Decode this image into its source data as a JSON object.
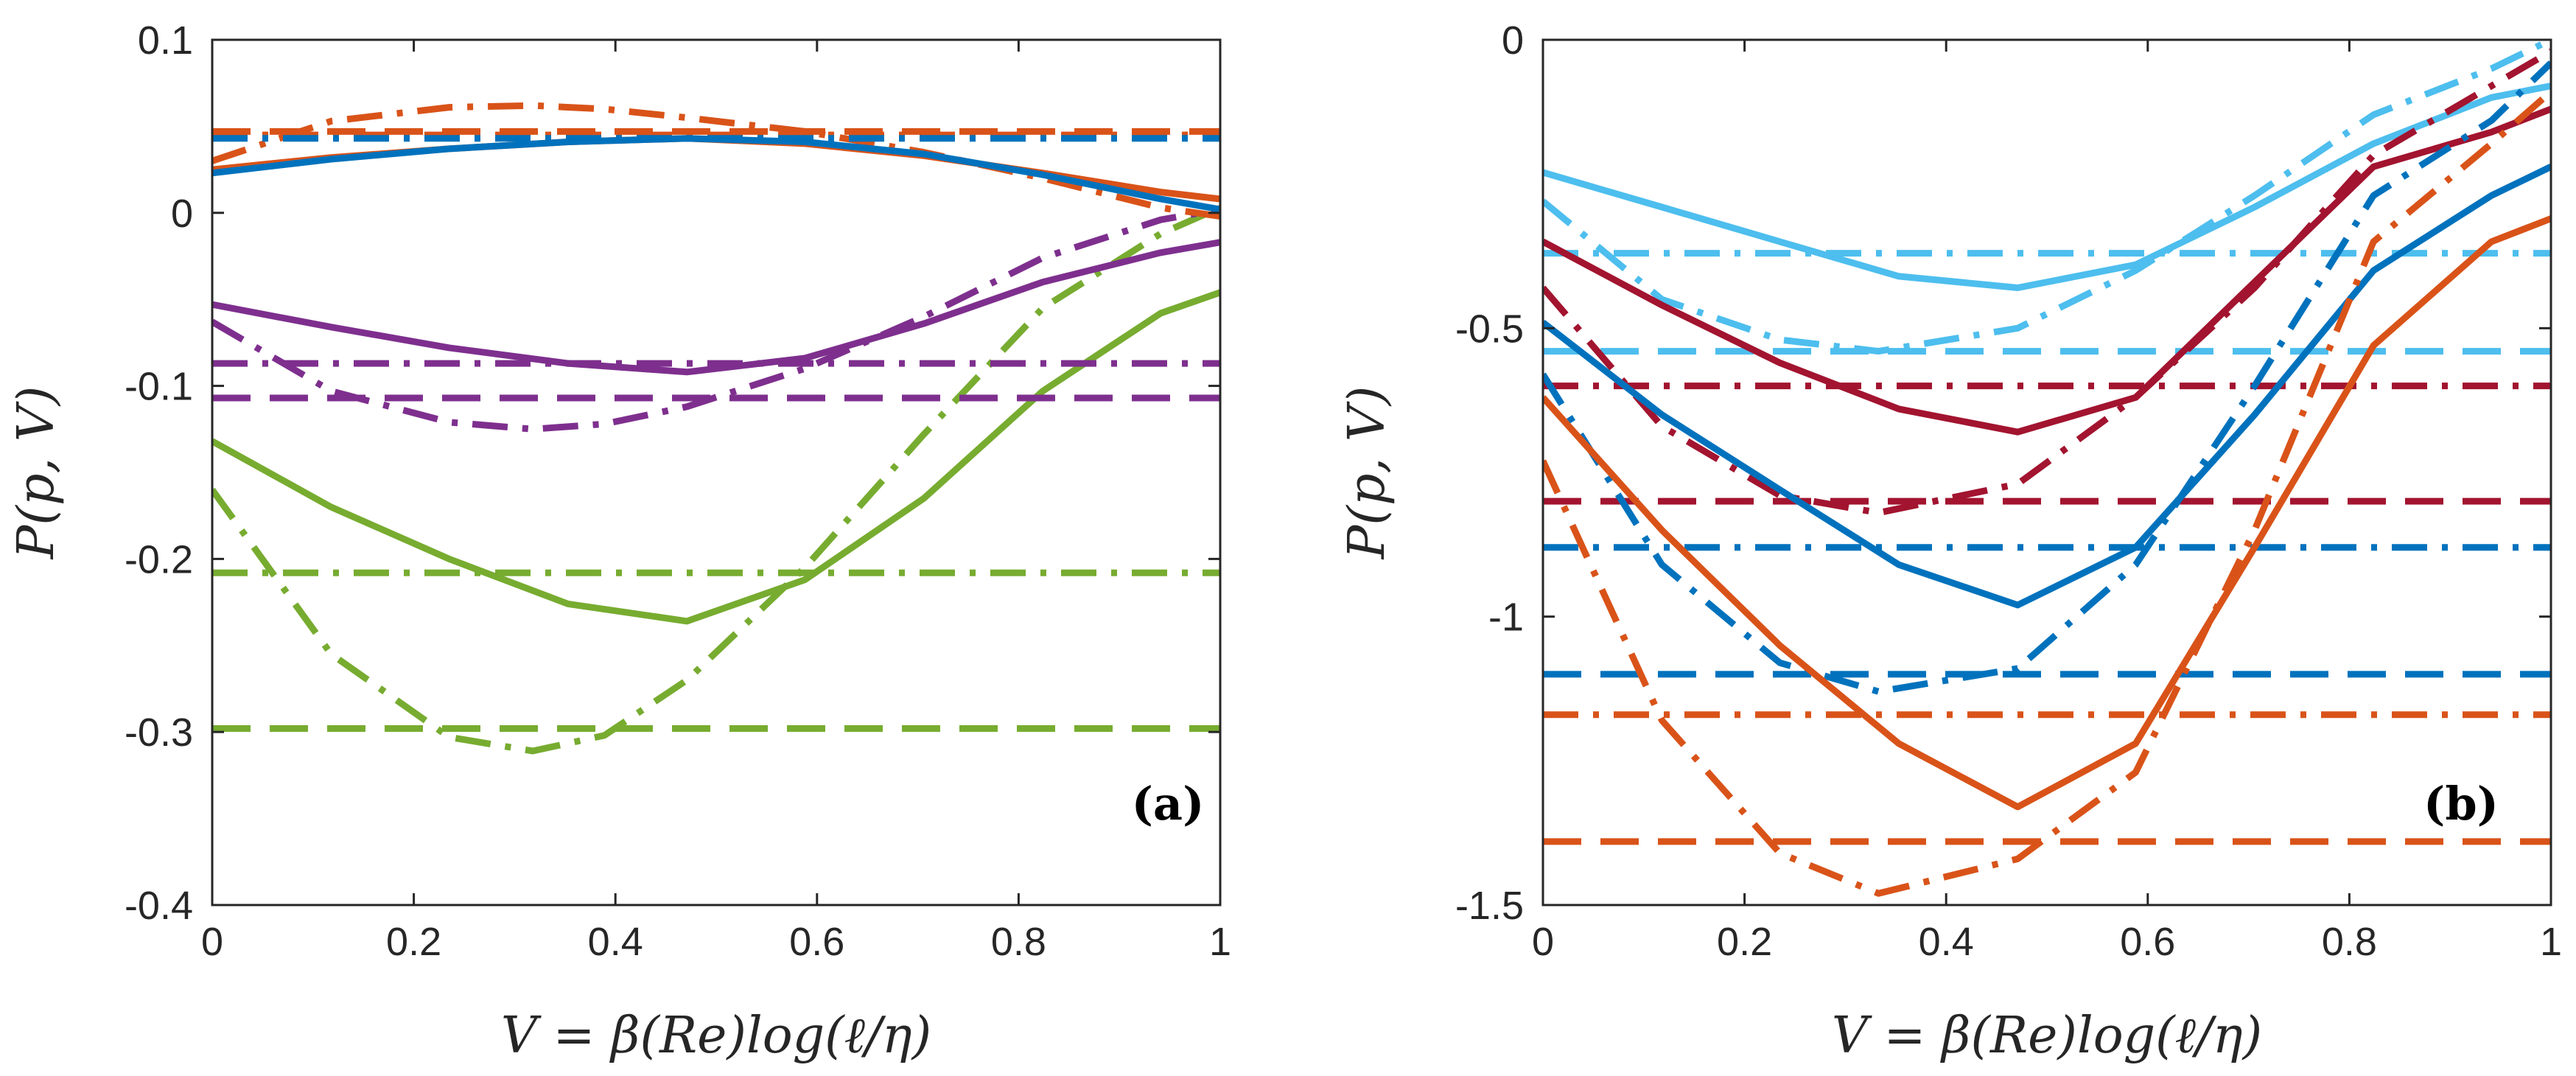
{
  "chart_data": [
    {
      "type": "line",
      "panel_label": "(a)",
      "xlabel": "V = β(Re)log(ℓ/η)",
      "ylabel": "P(p, V)",
      "xlim": [
        0,
        1
      ],
      "ylim": [
        -0.4,
        0.1
      ],
      "xticks": [
        0,
        0.2,
        0.4,
        0.6,
        0.8,
        1
      ],
      "xtick_labels": [
        "0",
        "0.2",
        "0.4",
        "0.6",
        "0.8",
        "1"
      ],
      "yticks": [
        -0.4,
        -0.3,
        -0.2,
        -0.1,
        0,
        0.1
      ],
      "ytick_labels": [
        "-0.4",
        "-0.3",
        "-0.2",
        "-0.1",
        "0",
        "0.1"
      ],
      "series": [
        {
          "group": "green",
          "color": "#77ac30",
          "style": "solid",
          "x": [
            0,
            0.118,
            0.235,
            0.353,
            0.471,
            0.588,
            0.706,
            0.824,
            0.941,
            1.0
          ],
          "values": [
            -0.132,
            -0.17,
            -0.2,
            -0.226,
            -0.236,
            -0.212,
            -0.165,
            -0.103,
            -0.058,
            -0.046
          ]
        },
        {
          "group": "green",
          "color": "#77ac30",
          "style": "dashdot",
          "x": [
            0,
            0.118,
            0.235,
            0.318,
            0.389,
            0.471,
            0.588,
            0.706,
            0.824,
            0.941,
            1.0
          ],
          "values": [
            -0.16,
            -0.255,
            -0.303,
            -0.311,
            -0.302,
            -0.27,
            -0.205,
            -0.128,
            -0.055,
            -0.012,
            0.003
          ]
        },
        {
          "group": "green",
          "color": "#77ac30",
          "style": "dashdot",
          "x": [
            0,
            1
          ],
          "values": [
            -0.208,
            -0.208
          ]
        },
        {
          "group": "green",
          "color": "#77ac30",
          "style": "dashed",
          "x": [
            0,
            1
          ],
          "values": [
            -0.298,
            -0.298
          ]
        },
        {
          "group": "purple",
          "color": "#7e2f8e",
          "style": "solid",
          "x": [
            0,
            0.118,
            0.235,
            0.353,
            0.471,
            0.588,
            0.706,
            0.824,
            0.941,
            1.0
          ],
          "values": [
            -0.053,
            -0.066,
            -0.078,
            -0.087,
            -0.092,
            -0.084,
            -0.064,
            -0.04,
            -0.023,
            -0.017
          ]
        },
        {
          "group": "purple",
          "color": "#7e2f8e",
          "style": "dashdot",
          "x": [
            0,
            0.118,
            0.235,
            0.318,
            0.389,
            0.471,
            0.588,
            0.706,
            0.824,
            0.941,
            1.0
          ],
          "values": [
            -0.063,
            -0.103,
            -0.121,
            -0.125,
            -0.122,
            -0.112,
            -0.09,
            -0.06,
            -0.026,
            -0.004,
            0.002
          ]
        },
        {
          "group": "purple",
          "color": "#7e2f8e",
          "style": "dashdot",
          "x": [
            0,
            1
          ],
          "values": [
            -0.087,
            -0.087
          ]
        },
        {
          "group": "purple",
          "color": "#7e2f8e",
          "style": "dashed",
          "x": [
            0,
            1
          ],
          "values": [
            -0.107,
            -0.107
          ]
        },
        {
          "group": "orange",
          "color": "#d95319",
          "style": "solid",
          "x": [
            0,
            0.118,
            0.235,
            0.353,
            0.471,
            0.588,
            0.706,
            0.824,
            0.941,
            1.0
          ],
          "values": [
            0.025,
            0.032,
            0.037,
            0.041,
            0.043,
            0.04,
            0.033,
            0.023,
            0.012,
            0.008
          ]
        },
        {
          "group": "orange",
          "color": "#d95319",
          "style": "dashdot",
          "x": [
            0,
            0.118,
            0.235,
            0.318,
            0.389,
            0.471,
            0.588,
            0.706,
            0.824,
            0.941,
            1.0
          ],
          "values": [
            0.03,
            0.053,
            0.061,
            0.062,
            0.06,
            0.055,
            0.047,
            0.035,
            0.02,
            0.003,
            -0.002
          ]
        },
        {
          "group": "orange",
          "color": "#d95319",
          "style": "dashdot",
          "x": [
            0,
            1
          ],
          "values": [
            0.045,
            0.045
          ]
        },
        {
          "group": "orange",
          "color": "#d95319",
          "style": "dashed",
          "x": [
            0,
            1
          ],
          "values": [
            0.047,
            0.047
          ]
        },
        {
          "group": "blue",
          "color": "#0072bd",
          "style": "solid",
          "x": [
            0,
            0.118,
            0.235,
            0.353,
            0.471,
            0.588,
            0.706,
            0.824,
            0.941,
            1.0
          ],
          "values": [
            0.023,
            0.031,
            0.037,
            0.041,
            0.043,
            0.041,
            0.034,
            0.022,
            0.008,
            0.002
          ]
        },
        {
          "group": "blue",
          "color": "#0072bd",
          "style": "dashdot",
          "x": [
            0,
            1
          ],
          "values": [
            0.043,
            0.043
          ]
        }
      ]
    },
    {
      "type": "line",
      "panel_label": "(b)",
      "xlabel": "V = β(Re)log(ℓ/η)",
      "ylabel": "P(p, V)",
      "xlim": [
        0,
        1
      ],
      "ylim": [
        -1.5,
        0
      ],
      "xticks": [
        0,
        0.2,
        0.4,
        0.6,
        0.8,
        1
      ],
      "xtick_labels": [
        "0",
        "0.2",
        "0.4",
        "0.6",
        "0.8",
        "1"
      ],
      "yticks": [
        -1.5,
        -1,
        -0.5,
        0
      ],
      "ytick_labels": [
        "-1.5",
        "-1",
        "-0.5",
        "0"
      ],
      "series": [
        {
          "group": "light-blue",
          "color": "#4dbeee",
          "style": "solid",
          "x": [
            0,
            0.118,
            0.235,
            0.353,
            0.471,
            0.588,
            0.706,
            0.824,
            0.941,
            1.0
          ],
          "values": [
            -0.23,
            -0.29,
            -0.35,
            -0.41,
            -0.43,
            -0.39,
            -0.29,
            -0.18,
            -0.1,
            -0.08
          ]
        },
        {
          "group": "light-blue",
          "color": "#4dbeee",
          "style": "dashdot",
          "x": [
            0,
            0.118,
            0.235,
            0.333,
            0.471,
            0.588,
            0.706,
            0.824,
            0.941,
            1.0
          ],
          "values": [
            -0.28,
            -0.45,
            -0.52,
            -0.54,
            -0.5,
            -0.4,
            -0.27,
            -0.13,
            -0.05,
            0.0
          ]
        },
        {
          "group": "light-blue",
          "color": "#4dbeee",
          "style": "dashdot",
          "x": [
            0,
            1
          ],
          "values": [
            -0.37,
            -0.37
          ]
        },
        {
          "group": "light-blue",
          "color": "#4dbeee",
          "style": "dashed",
          "x": [
            0,
            1
          ],
          "values": [
            -0.54,
            -0.54
          ]
        },
        {
          "group": "dark-red",
          "color": "#a2142f",
          "style": "solid",
          "x": [
            0,
            0.118,
            0.235,
            0.353,
            0.471,
            0.588,
            0.706,
            0.824,
            0.941,
            1.0
          ],
          "values": [
            -0.35,
            -0.46,
            -0.56,
            -0.64,
            -0.68,
            -0.62,
            -0.42,
            -0.22,
            -0.16,
            -0.12
          ]
        },
        {
          "group": "dark-red",
          "color": "#a2142f",
          "style": "dashdot",
          "x": [
            0,
            0.118,
            0.235,
            0.333,
            0.471,
            0.588,
            0.706,
            0.824,
            0.941,
            1.0
          ],
          "values": [
            -0.43,
            -0.67,
            -0.79,
            -0.82,
            -0.77,
            -0.62,
            -0.43,
            -0.2,
            -0.08,
            -0.02
          ]
        },
        {
          "group": "dark-red",
          "color": "#a2142f",
          "style": "dashdot",
          "x": [
            0,
            1
          ],
          "values": [
            -0.6,
            -0.6
          ]
        },
        {
          "group": "dark-red",
          "color": "#a2142f",
          "style": "dashed",
          "x": [
            0,
            1
          ],
          "values": [
            -0.8,
            -0.8
          ]
        },
        {
          "group": "blue",
          "color": "#0072bd",
          "style": "solid",
          "x": [
            0,
            0.118,
            0.235,
            0.353,
            0.471,
            0.588,
            0.706,
            0.824,
            0.941,
            1.0
          ],
          "values": [
            -0.49,
            -0.65,
            -0.78,
            -0.91,
            -0.98,
            -0.88,
            -0.65,
            -0.4,
            -0.27,
            -0.22
          ]
        },
        {
          "group": "blue",
          "color": "#0072bd",
          "style": "dashdot",
          "x": [
            0,
            0.118,
            0.235,
            0.333,
            0.471,
            0.588,
            0.706,
            0.824,
            0.941,
            1.0
          ],
          "values": [
            -0.58,
            -0.91,
            -1.08,
            -1.13,
            -1.09,
            -0.91,
            -0.6,
            -0.27,
            -0.14,
            -0.04
          ]
        },
        {
          "group": "blue",
          "color": "#0072bd",
          "style": "dashdot",
          "x": [
            0,
            1
          ],
          "values": [
            -0.88,
            -0.88
          ]
        },
        {
          "group": "blue",
          "color": "#0072bd",
          "style": "dashed",
          "x": [
            0,
            1
          ],
          "values": [
            -1.1,
            -1.1
          ]
        },
        {
          "group": "orange",
          "color": "#d95319",
          "style": "solid",
          "x": [
            0,
            0.118,
            0.235,
            0.353,
            0.471,
            0.588,
            0.706,
            0.824,
            0.941,
            1.0
          ],
          "values": [
            -0.62,
            -0.85,
            -1.05,
            -1.22,
            -1.33,
            -1.22,
            -0.88,
            -0.53,
            -0.35,
            -0.31
          ]
        },
        {
          "group": "orange",
          "color": "#d95319",
          "style": "dashdot",
          "x": [
            0,
            0.118,
            0.235,
            0.333,
            0.471,
            0.588,
            0.706,
            0.824,
            0.941,
            1.0
          ],
          "values": [
            -0.73,
            -1.18,
            -1.41,
            -1.48,
            -1.42,
            -1.27,
            -0.85,
            -0.35,
            -0.18,
            -0.09
          ]
        },
        {
          "group": "orange",
          "color": "#d95319",
          "style": "dashdot",
          "x": [
            0,
            1
          ],
          "values": [
            -1.17,
            -1.17
          ]
        },
        {
          "group": "orange",
          "color": "#d95319",
          "style": "dashed",
          "x": [
            0,
            1
          ],
          "values": [
            -1.39,
            -1.39
          ]
        }
      ]
    }
  ]
}
